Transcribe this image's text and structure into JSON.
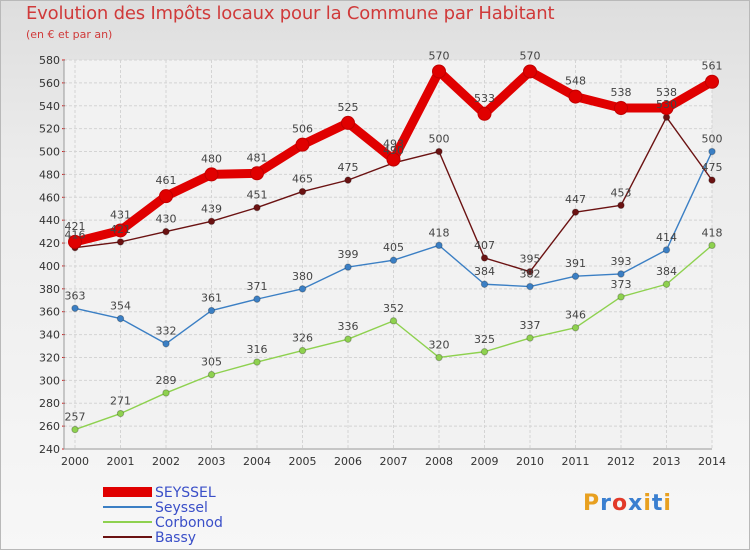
{
  "title": "Evolution des Impôts locaux pour la Commune par Habitant",
  "subtitle": "(en € et par an)",
  "logo": {
    "text": "Proxiti",
    "colors": [
      "#e8a020",
      "#3a7fd0",
      "#e23a2a",
      "#3a7fd0",
      "#e8a020",
      "#3a7fd0",
      "#e8a020"
    ]
  },
  "chart_data": {
    "type": "line",
    "x": [
      "2000",
      "2001",
      "2002",
      "2003",
      "2004",
      "2005",
      "2006",
      "2007",
      "2008",
      "2009",
      "2010",
      "2011",
      "2012",
      "2013",
      "2014"
    ],
    "ylim": [
      240,
      580
    ],
    "yticks": [
      240,
      260,
      280,
      300,
      320,
      340,
      360,
      380,
      400,
      420,
      440,
      460,
      480,
      500,
      520,
      540,
      560,
      580
    ],
    "grid": true,
    "legend_position": "bottom-left",
    "series": [
      {
        "name": "SEYSSEL",
        "color": "#e00000",
        "values": [
          421,
          431,
          461,
          480,
          481,
          506,
          525,
          493,
          570,
          533,
          570,
          548,
          538,
          538,
          561
        ],
        "labels": [
          "421",
          "431",
          "461",
          "480",
          "481",
          "506",
          "525",
          "493",
          "570",
          "533",
          "570",
          "548",
          "538",
          "538",
          "561"
        ],
        "thick": true
      },
      {
        "name": "Seyssel",
        "color": "#3b7fc4",
        "values": [
          363,
          354,
          332,
          361,
          371,
          380,
          399,
          405,
          418,
          384,
          382,
          391,
          393,
          414,
          500
        ],
        "labels": [
          "363",
          "354",
          "332",
          "361",
          "371",
          "380",
          "399",
          "405",
          "418",
          "384",
          "382",
          "391",
          "393",
          "414",
          "500"
        ],
        "thick": false
      },
      {
        "name": "Corbonod",
        "color": "#8ed14f",
        "values": [
          257,
          271,
          289,
          305,
          316,
          326,
          336,
          352,
          320,
          325,
          337,
          346,
          373,
          384,
          418
        ],
        "labels": [
          "257",
          "271",
          "289",
          "305",
          "316",
          "326",
          "336",
          "352",
          "320",
          "325",
          "337",
          "346",
          "373",
          "384",
          "418"
        ],
        "thick": false
      },
      {
        "name": "Bassy",
        "color": "#6b1212",
        "values": [
          416,
          421,
          430,
          439,
          451,
          465,
          475,
          490,
          500,
          407,
          395,
          447,
          453,
          530,
          475
        ],
        "labels": [
          "416",
          "421",
          "430",
          "439",
          "451",
          "465",
          "475",
          "490",
          "500",
          "407",
          "395",
          "447",
          "453",
          "530",
          "475"
        ],
        "thick": false
      }
    ]
  }
}
